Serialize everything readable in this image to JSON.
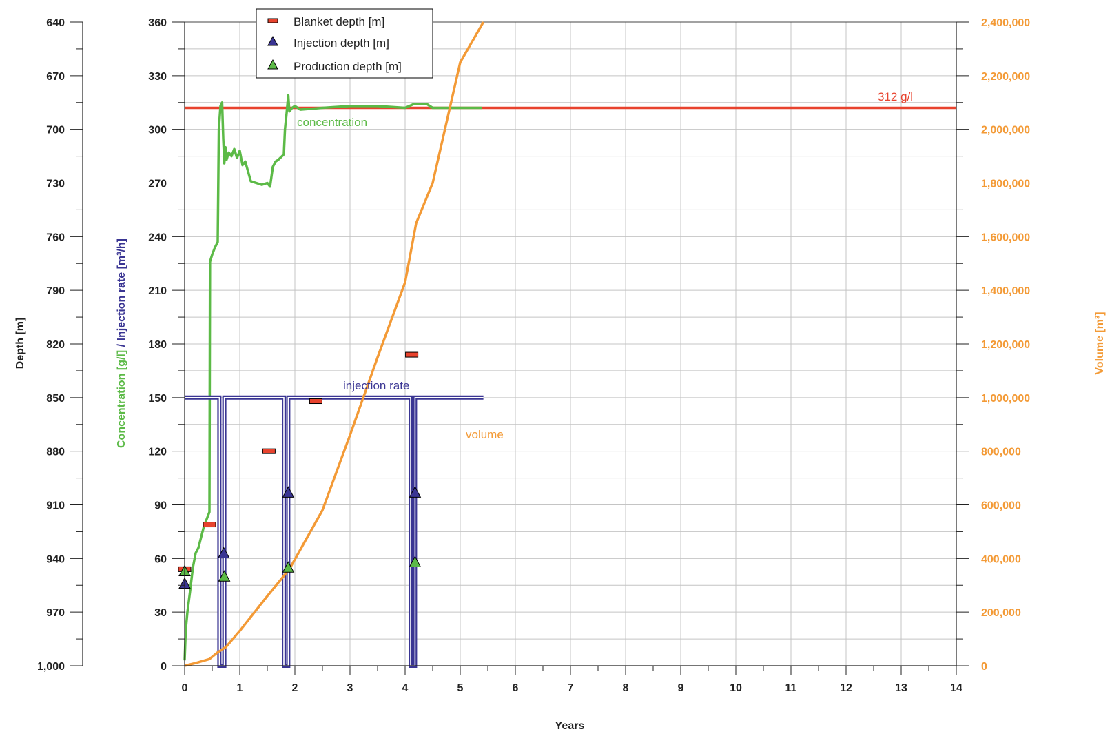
{
  "chart_data": {
    "type": "line",
    "xlabel": "Years",
    "xlim": [
      0,
      14
    ],
    "x_ticks": [
      "0",
      "1",
      "2",
      "3",
      "4",
      "5",
      "6",
      "7",
      "8",
      "9",
      "10",
      "11",
      "12",
      "13",
      "14"
    ],
    "axes": {
      "depth": {
        "label": "Depth [m]",
        "lim": [
          640,
          1000
        ],
        "inverted": true,
        "ticks": [
          "640",
          "670",
          "700",
          "730",
          "760",
          "790",
          "820",
          "850",
          "880",
          "910",
          "940",
          "970",
          "1,000"
        ]
      },
      "primary": {
        "label_part1": "Concentration [g/l]",
        "label_sep": " / ",
        "label_part2": "Injection rate [m³/h]",
        "lim": [
          0,
          360
        ],
        "ticks": [
          "0",
          "30",
          "60",
          "90",
          "120",
          "150",
          "180",
          "210",
          "240",
          "270",
          "300",
          "330",
          "360"
        ]
      },
      "volume": {
        "label": "Volume [m³]",
        "lim": [
          0,
          2400000
        ],
        "ticks": [
          "0",
          "200,000",
          "400,000",
          "600,000",
          "800,000",
          "1,000,000",
          "1,200,000",
          "1,400,000",
          "1,600,000",
          "1,800,000",
          "2,000,000",
          "2,200,000",
          "2,400,000"
        ]
      }
    },
    "grid": true,
    "legend_position": "top-left",
    "legend": [
      "Blanket depth [m]",
      "Injection depth [m]",
      "Production depth [m]"
    ],
    "reference_line": {
      "y": 312,
      "label": "312 g/l",
      "color": "#e8432e"
    },
    "series": [
      {
        "name": "concentration",
        "axis": "primary",
        "color": "#5cba47",
        "x": [
          0,
          0.02,
          0.05,
          0.1,
          0.15,
          0.2,
          0.25,
          0.3,
          0.35,
          0.4,
          0.45,
          0.46,
          0.5,
          0.55,
          0.6,
          0.62,
          0.65,
          0.68,
          0.7,
          0.72,
          0.74,
          0.76,
          0.8,
          0.85,
          0.9,
          0.95,
          1.0,
          1.05,
          1.1,
          1.2,
          1.3,
          1.4,
          1.5,
          1.55,
          1.6,
          1.65,
          1.7,
          1.8,
          1.82,
          1.85,
          1.88,
          1.9,
          1.95,
          2.0,
          2.1,
          2.5,
          3.0,
          3.5,
          4.0,
          4.15,
          4.3,
          4.4,
          4.5,
          5.0,
          5.4
        ],
        "values": [
          3,
          20,
          30,
          42,
          55,
          63,
          66,
          72,
          78,
          82,
          86,
          226,
          230,
          234,
          237,
          300,
          313,
          315,
          295,
          281,
          290,
          283,
          287,
          285,
          289,
          284,
          288,
          280,
          282,
          271,
          270,
          269,
          270,
          268,
          279,
          282,
          283,
          286,
          300,
          309,
          319,
          310,
          312,
          313,
          311,
          312,
          313,
          313,
          312,
          314,
          314,
          314,
          312,
          312,
          312
        ]
      },
      {
        "name": "injection rate",
        "axis": "primary",
        "color": "#3a3593",
        "x": [
          0,
          0.63,
          0.63,
          0.72,
          0.72,
          1.8,
          1.8,
          1.88,
          1.88,
          4.1,
          4.1,
          4.18,
          4.18,
          5.42
        ],
        "values": [
          150,
          150,
          0,
          0,
          150,
          150,
          0,
          0,
          150,
          150,
          0,
          0,
          150,
          150
        ]
      },
      {
        "name": "volume",
        "axis": "volume",
        "color": "#f39a36",
        "x": [
          0,
          0.2,
          0.45,
          0.6,
          0.75,
          1.0,
          1.5,
          1.9,
          2.5,
          3.0,
          3.5,
          4.0,
          4.2,
          4.5,
          5.0,
          5.42
        ],
        "values": [
          0,
          10000,
          25000,
          50000,
          70000,
          130000,
          260000,
          360000,
          580000,
          860000,
          1150000,
          1430000,
          1650000,
          1800000,
          2250000,
          2580000
        ]
      },
      {
        "name": "Blanket depth [m]",
        "axis": "depth",
        "marker": "rect",
        "color": "#e8432e",
        "x": [
          0,
          0.45,
          1.53,
          2.38,
          4.12
        ],
        "values": [
          946,
          921,
          880,
          852,
          826
        ]
      },
      {
        "name": "Injection depth [m]",
        "axis": "depth",
        "marker": "triangle",
        "color": "#3a3593",
        "x": [
          0,
          0.71,
          1.88,
          4.18
        ],
        "values": [
          954,
          937,
          903,
          903
        ]
      },
      {
        "name": "Production depth [m]",
        "axis": "depth",
        "marker": "triangle",
        "color": "#5cba47",
        "x": [
          0,
          0.72,
          1.88,
          4.18
        ],
        "values": [
          947,
          950,
          945,
          942
        ]
      }
    ]
  },
  "labels": {
    "concentration": "concentration",
    "injection_rate": "injection rate",
    "volume": "volume"
  }
}
